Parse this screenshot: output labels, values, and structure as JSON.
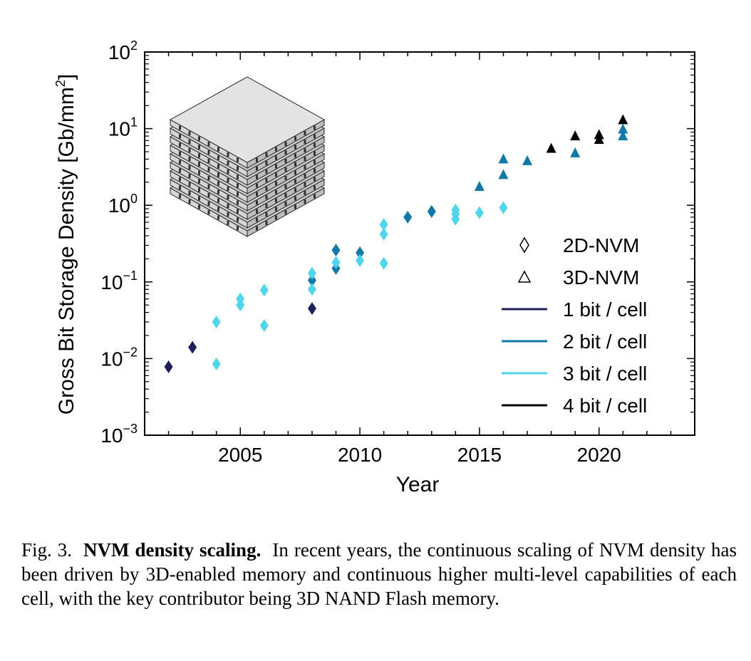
{
  "chart_data": {
    "type": "scatter",
    "xlabel": "Year",
    "ylabel": "Gross Bit Storage Density [Gb/mm",
    "ylabel_sup": "2",
    "ylabel_end": "]",
    "xlim": [
      2001,
      2024
    ],
    "ylim": [
      0.001,
      100
    ],
    "yscale": "log",
    "x_ticks": [
      2005,
      2010,
      2015,
      2020
    ],
    "x_tick_labels": [
      "2005",
      "2010",
      "2015",
      "2020"
    ],
    "y_ticks": [
      0.001,
      0.01,
      0.1,
      1,
      10,
      100
    ],
    "y_tick_labels": [
      {
        "base": "10",
        "exp": "−3"
      },
      {
        "base": "10",
        "exp": "−2"
      },
      {
        "base": "10",
        "exp": "−1"
      },
      {
        "base": "10",
        "exp": "0"
      },
      {
        "base": "10",
        "exp": "1"
      },
      {
        "base": "10",
        "exp": "2"
      }
    ],
    "grid": false,
    "legend_position": "lower-right",
    "colors": {
      "1 bit / cell": "#1f1f5a",
      "2 bit / cell": "#1278a8",
      "3 bit / cell": "#4fd6ea",
      "4 bit / cell": "#000000"
    },
    "legend": [
      {
        "label": "2D-NVM",
        "kind": "diamond"
      },
      {
        "label": "3D-NVM",
        "kind": "triangle"
      },
      {
        "label": "1 bit / cell",
        "kind": "line",
        "color": "#1f1f5a"
      },
      {
        "label": "2 bit / cell",
        "kind": "line",
        "color": "#1278a8"
      },
      {
        "label": "3 bit / cell",
        "kind": "line",
        "color": "#4fd6ea"
      },
      {
        "label": "4 bit / cell",
        "kind": "line",
        "color": "#000000"
      }
    ],
    "points": [
      {
        "x": 2002,
        "y": 0.0078,
        "marker": "diamond",
        "bits": 1
      },
      {
        "x": 2003,
        "y": 0.014,
        "marker": "diamond",
        "bits": 1
      },
      {
        "x": 2004,
        "y": 0.0085,
        "marker": "diamond",
        "bits": 3
      },
      {
        "x": 2004,
        "y": 0.03,
        "marker": "diamond",
        "bits": 3
      },
      {
        "x": 2005,
        "y": 0.05,
        "marker": "diamond",
        "bits": 3
      },
      {
        "x": 2005,
        "y": 0.06,
        "marker": "diamond",
        "bits": 3
      },
      {
        "x": 2006,
        "y": 0.027,
        "marker": "diamond",
        "bits": 3
      },
      {
        "x": 2006,
        "y": 0.078,
        "marker": "diamond",
        "bits": 3
      },
      {
        "x": 2008,
        "y": 0.045,
        "marker": "diamond",
        "bits": 1
      },
      {
        "x": 2008,
        "y": 0.105,
        "marker": "diamond",
        "bits": 2
      },
      {
        "x": 2008,
        "y": 0.08,
        "marker": "diamond",
        "bits": 3
      },
      {
        "x": 2008,
        "y": 0.13,
        "marker": "diamond",
        "bits": 3
      },
      {
        "x": 2009,
        "y": 0.26,
        "marker": "diamond",
        "bits": 2
      },
      {
        "x": 2009,
        "y": 0.15,
        "marker": "diamond",
        "bits": 2
      },
      {
        "x": 2009,
        "y": 0.18,
        "marker": "diamond",
        "bits": 3
      },
      {
        "x": 2010,
        "y": 0.24,
        "marker": "diamond",
        "bits": 2
      },
      {
        "x": 2010,
        "y": 0.19,
        "marker": "diamond",
        "bits": 3
      },
      {
        "x": 2011,
        "y": 0.175,
        "marker": "diamond",
        "bits": 3
      },
      {
        "x": 2011,
        "y": 0.42,
        "marker": "diamond",
        "bits": 3
      },
      {
        "x": 2011,
        "y": 0.56,
        "marker": "diamond",
        "bits": 3
      },
      {
        "x": 2012,
        "y": 0.7,
        "marker": "diamond",
        "bits": 2
      },
      {
        "x": 2013,
        "y": 0.83,
        "marker": "diamond",
        "bits": 2
      },
      {
        "x": 2014,
        "y": 0.66,
        "marker": "diamond",
        "bits": 3
      },
      {
        "x": 2014,
        "y": 0.77,
        "marker": "diamond",
        "bits": 3
      },
      {
        "x": 2014,
        "y": 0.87,
        "marker": "diamond",
        "bits": 3
      },
      {
        "x": 2015,
        "y": 0.8,
        "marker": "diamond",
        "bits": 3
      },
      {
        "x": 2016,
        "y": 0.93,
        "marker": "diamond",
        "bits": 3
      },
      {
        "x": 2015,
        "y": 1.75,
        "marker": "triangle",
        "bits": 2
      },
      {
        "x": 2016,
        "y": 2.5,
        "marker": "triangle",
        "bits": 2
      },
      {
        "x": 2016,
        "y": 4.0,
        "marker": "triangle",
        "bits": 2
      },
      {
        "x": 2017,
        "y": 3.8,
        "marker": "triangle",
        "bits": 2
      },
      {
        "x": 2018,
        "y": 5.5,
        "marker": "triangle",
        "bits": 4
      },
      {
        "x": 2019,
        "y": 4.8,
        "marker": "triangle",
        "bits": 2
      },
      {
        "x": 2019,
        "y": 8.0,
        "marker": "triangle",
        "bits": 4
      },
      {
        "x": 2020,
        "y": 7.2,
        "marker": "triangle",
        "bits": 4
      },
      {
        "x": 2020,
        "y": 8.3,
        "marker": "triangle",
        "bits": 4
      },
      {
        "x": 2021,
        "y": 8.0,
        "marker": "triangle",
        "bits": 2
      },
      {
        "x": 2021,
        "y": 9.8,
        "marker": "triangle",
        "bits": 2
      },
      {
        "x": 2021,
        "y": 13.0,
        "marker": "triangle",
        "bits": 4
      }
    ]
  },
  "caption": {
    "label": "Fig. 3.",
    "bold": "NVM density scaling.",
    "text": "In recent years, the continuous scaling of NVM density has been driven by 3D-enabled memory and continuous higher multi-level capabilities of each cell, with the key contributor being 3D NAND Flash memory."
  }
}
